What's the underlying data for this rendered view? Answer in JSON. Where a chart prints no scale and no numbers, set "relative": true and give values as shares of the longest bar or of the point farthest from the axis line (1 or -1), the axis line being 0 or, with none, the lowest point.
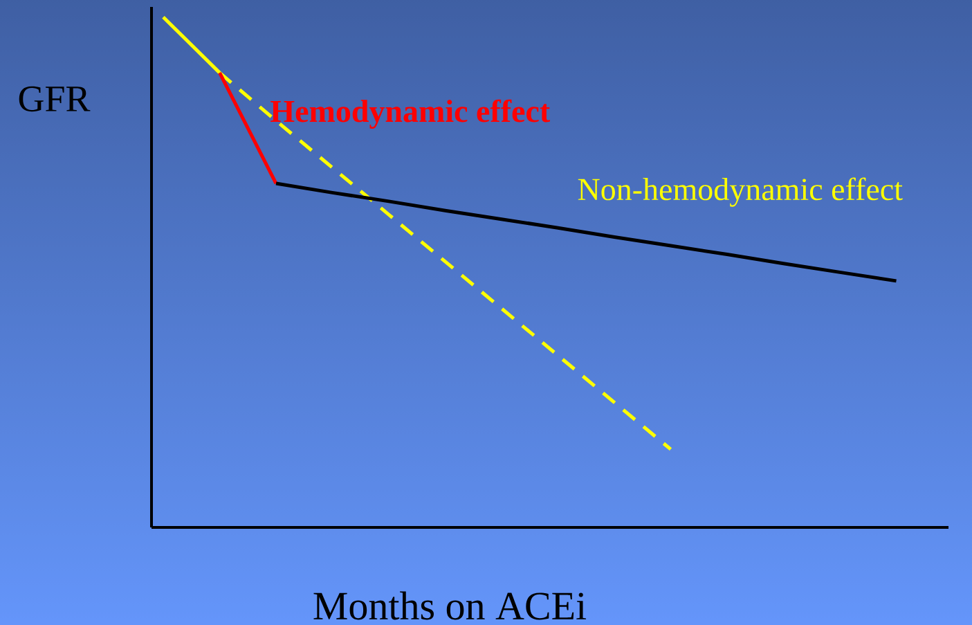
{
  "chart_data": {
    "type": "line",
    "relative": true,
    "xlabel": "Months on ACEi",
    "ylabel": "GFR",
    "categories": [
      null,
      null,
      null,
      null,
      null,
      null,
      null,
      null,
      null,
      null,
      null,
      null,
      null,
      null
    ],
    "series": [
      {
        "color": "#ffff00",
        "line_style": "solid",
        "values": [
          1.0,
          0.891,
          null,
          null,
          null,
          null,
          null,
          null,
          null,
          null,
          null,
          null,
          null,
          null
        ]
      },
      {
        "name": "Non-hemodynamic effect",
        "color": "#ffff00",
        "line_style": "dashed",
        "values": [
          null,
          0.891,
          0.797,
          0.705,
          0.613,
          0.521,
          0.429,
          0.337,
          0.245,
          0.153,
          null,
          null,
          null,
          null
        ]
      },
      {
        "name": "Hemodynamic effect",
        "color": "#ff0000",
        "line_style": "solid",
        "values": [
          null,
          0.891,
          0.674,
          null,
          null,
          null,
          null,
          null,
          null,
          null,
          null,
          null,
          null,
          null
        ]
      },
      {
        "color": "#000000",
        "line_style": "solid",
        "values": [
          null,
          null,
          0.674,
          0.656,
          0.639,
          0.621,
          0.604,
          0.587,
          0.569,
          0.552,
          0.535,
          0.517,
          0.5,
          0.483
        ]
      }
    ]
  }
}
